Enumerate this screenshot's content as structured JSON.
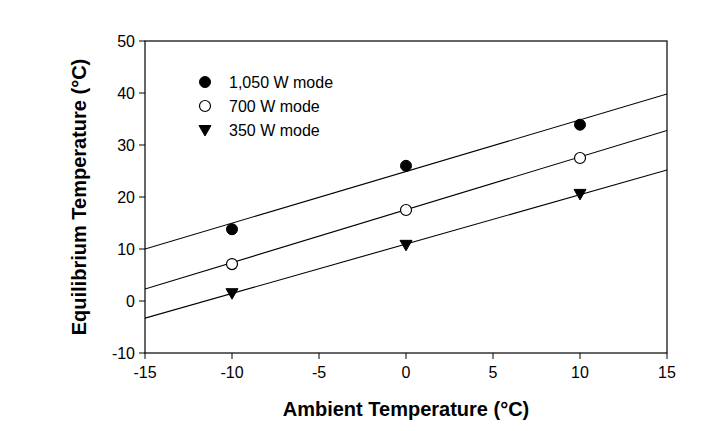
{
  "chart_data": {
    "type": "scatter",
    "x_label": "Ambient Temperature (°C)",
    "y_label": "Equilibrium Temperature (°C)",
    "x": [
      -10,
      0,
      10
    ],
    "fit_x": [
      -15,
      15
    ],
    "series": [
      {
        "name": "1,050 W mode",
        "color": "#000000",
        "marker": "circle",
        "values": [
          13.8,
          26.0,
          33.9
        ],
        "fit": [
          10.0,
          39.8
        ]
      },
      {
        "name": "700 W mode",
        "color": "#000000",
        "marker": "open_circle",
        "values": [
          7.1,
          17.5,
          27.5
        ],
        "fit": [
          2.3,
          32.8
        ]
      },
      {
        "name": "350 W mode",
        "color": "#000000",
        "marker": "triangle_down",
        "values": [
          1.5,
          10.8,
          20.6
        ],
        "fit": [
          -3.3,
          25.2
        ]
      }
    ],
    "xlim": [
      -15,
      15
    ],
    "ylim": [
      -10,
      50
    ],
    "xticks": [
      -15,
      -10,
      -5,
      0,
      5,
      10,
      15
    ],
    "yticks": [
      -10,
      0,
      10,
      20,
      30,
      40,
      50
    ],
    "grid": false,
    "legend": "upper left"
  }
}
